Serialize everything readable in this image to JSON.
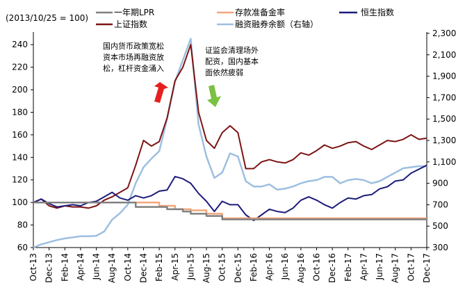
{
  "chart_data": {
    "type": "line",
    "index_note": "(2013/10/25 = 100)",
    "left_axis": {
      "ylim": [
        60,
        250
      ],
      "ticks": [
        60,
        80,
        100,
        120,
        140,
        160,
        180,
        200,
        220,
        240
      ]
    },
    "right_axis": {
      "label": "融资融券余额（右轴）",
      "ylim": [
        300,
        2300
      ],
      "ticks": [
        "300",
        "500",
        "700",
        "900",
        "1,100",
        "1,300",
        "1,500",
        "1,700",
        "1,900",
        "2,100",
        "2,300"
      ]
    },
    "x_ticks": [
      "Oct-13",
      "Dec-13",
      "Feb-14",
      "Apr-14",
      "Jun-14",
      "Aug-14",
      "Oct-14",
      "Dec-14",
      "Feb-15",
      "Apr-15",
      "Jun-15",
      "Aug-15",
      "Oct-15",
      "Dec-15",
      "Feb-16",
      "Apr-16",
      "Jun-16",
      "Aug-16",
      "Oct-16",
      "Dec-16",
      "Feb-17",
      "Apr-17",
      "Jun-17",
      "Aug-17",
      "Oct-17",
      "Dec-17"
    ],
    "x_start": "2013-10",
    "x_end": "2017-12",
    "legend_position": "top",
    "series": [
      {
        "name": "一年期LPR",
        "axis": "left",
        "color": "#808080",
        "width": 2.5,
        "x": [
          "2013-10",
          "2014-11",
          "2014-11",
          "2015-03",
          "2015-03",
          "2015-05",
          "2015-05",
          "2015-06",
          "2015-06",
          "2015-08",
          "2015-08",
          "2015-10",
          "2015-10",
          "2017-12"
        ],
        "values": [
          100,
          100,
          96,
          96,
          94,
          94,
          92,
          92,
          90,
          90,
          88,
          88,
          85,
          85
        ]
      },
      {
        "name": "存款准备金率",
        "axis": "left",
        "color": "#f4a57c",
        "width": 2.5,
        "x": [
          "2013-10",
          "2015-02",
          "2015-02",
          "2015-04",
          "2015-04",
          "2015-06",
          "2015-06",
          "2015-08",
          "2015-08",
          "2015-10",
          "2015-10",
          "2017-12"
        ],
        "values": [
          100,
          100,
          97,
          97,
          94,
          94,
          93,
          93,
          90,
          90,
          86,
          86
        ]
      },
      {
        "name": "恒生指数",
        "axis": "left",
        "color": "#1c1c7a",
        "width": 2,
        "x": [
          "2013-10",
          "2013-11",
          "2013-12",
          "2014-01",
          "2014-02",
          "2014-03",
          "2014-04",
          "2014-05",
          "2014-06",
          "2014-07",
          "2014-08",
          "2014-09",
          "2014-10",
          "2014-11",
          "2014-12",
          "2015-01",
          "2015-02",
          "2015-03",
          "2015-04",
          "2015-05",
          "2015-06",
          "2015-07",
          "2015-08",
          "2015-09",
          "2015-10",
          "2015-11",
          "2015-12",
          "2016-01",
          "2016-02",
          "2016-03",
          "2016-04",
          "2016-05",
          "2016-06",
          "2016-07",
          "2016-08",
          "2016-09",
          "2016-10",
          "2016-11",
          "2016-12",
          "2017-01",
          "2017-02",
          "2017-03",
          "2017-04",
          "2017-05",
          "2017-06",
          "2017-07",
          "2017-08",
          "2017-09",
          "2017-10",
          "2017-12"
        ],
        "values": [
          100,
          103,
          99,
          96,
          97,
          98,
          97,
          100,
          101,
          105,
          109,
          104,
          102,
          106,
          104,
          106,
          110,
          111,
          123,
          121,
          117,
          108,
          101,
          92,
          101,
          98,
          98,
          89,
          84,
          89,
          94,
          92,
          91,
          95,
          102,
          105,
          102,
          98,
          95,
          100,
          104,
          103,
          106,
          107,
          112,
          114,
          119,
          120,
          126,
          133
        ]
      },
      {
        "name": "上证指数",
        "axis": "left",
        "color": "#7d1414",
        "width": 2,
        "x": [
          "2013-10",
          "2013-11",
          "2013-12",
          "2014-01",
          "2014-02",
          "2014-03",
          "2014-04",
          "2014-05",
          "2014-06",
          "2014-07",
          "2014-08",
          "2014-09",
          "2014-10",
          "2014-11",
          "2014-12",
          "2015-01",
          "2015-02",
          "2015-03",
          "2015-04",
          "2015-05",
          "2015-06",
          "2015-07",
          "2015-08",
          "2015-09",
          "2015-10",
          "2015-11",
          "2015-12",
          "2016-01",
          "2016-02",
          "2016-03",
          "2016-04",
          "2016-05",
          "2016-06",
          "2016-07",
          "2016-08",
          "2016-09",
          "2016-10",
          "2016-11",
          "2016-12",
          "2017-01",
          "2017-02",
          "2017-03",
          "2017-04",
          "2017-05",
          "2017-06",
          "2017-07",
          "2017-08",
          "2017-09",
          "2017-10",
          "2017-11",
          "2017-12"
        ],
        "values": [
          100,
          103,
          97,
          95,
          97,
          96,
          96,
          95,
          97,
          102,
          105,
          109,
          113,
          133,
          155,
          150,
          154,
          175,
          208,
          220,
          240,
          180,
          155,
          148,
          162,
          168,
          162,
          130,
          130,
          136,
          138,
          136,
          135,
          138,
          144,
          142,
          146,
          151,
          148,
          150,
          153,
          154,
          150,
          147,
          151,
          155,
          154,
          156,
          160,
          156,
          157
        ]
      },
      {
        "name": "融资融券余额（右轴）",
        "axis": "right",
        "color": "#9dbfe0",
        "width": 2.5,
        "x": [
          "2013-10",
          "2013-11",
          "2013-12",
          "2014-01",
          "2014-02",
          "2014-03",
          "2014-04",
          "2014-05",
          "2014-06",
          "2014-07",
          "2014-08",
          "2014-09",
          "2014-10",
          "2014-11",
          "2014-12",
          "2015-01",
          "2015-02",
          "2015-03",
          "2015-04",
          "2015-05",
          "2015-06",
          "2015-07",
          "2015-08",
          "2015-09",
          "2015-10",
          "2015-11",
          "2015-12",
          "2016-01",
          "2016-02",
          "2016-03",
          "2016-04",
          "2016-05",
          "2016-06",
          "2016-07",
          "2016-08",
          "2016-09",
          "2016-10",
          "2016-11",
          "2016-12",
          "2017-01",
          "2017-02",
          "2017-03",
          "2017-04",
          "2017-05",
          "2017-06",
          "2017-07",
          "2017-08",
          "2017-09",
          "2017-10",
          "2017-11",
          "2017-12"
        ],
        "values": [
          300,
          330,
          350,
          370,
          385,
          395,
          405,
          405,
          410,
          450,
          560,
          620,
          700,
          900,
          1050,
          1130,
          1200,
          1500,
          1850,
          2050,
          2250,
          1450,
          1150,
          950,
          1000,
          1180,
          1150,
          920,
          870,
          870,
          890,
          840,
          850,
          870,
          900,
          920,
          930,
          960,
          960,
          900,
          930,
          940,
          930,
          900,
          920,
          960,
          1000,
          1040,
          1050,
          1060,
          1060
        ]
      }
    ],
    "annotations": [
      {
        "lines": [
          "国内货币政策宽松",
          "资本市场再融资放",
          "松，杠杆资金涌入"
        ],
        "arrow": "up",
        "arrow_color": "#e62020"
      },
      {
        "lines": [
          "证监会清理场外",
          "配资，国内基本",
          "面依然疲弱"
        ],
        "arrow": "down",
        "arrow_color": "#7ac143"
      }
    ]
  }
}
